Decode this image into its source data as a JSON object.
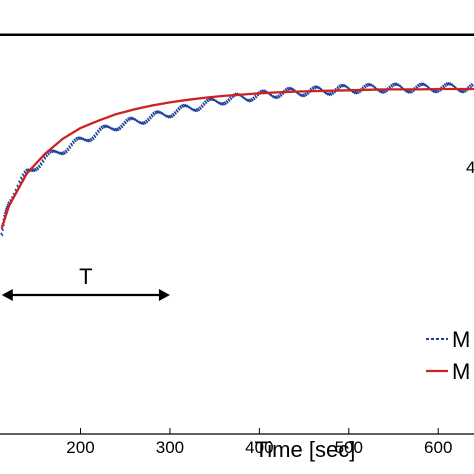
{
  "chart_data": {
    "type": "line",
    "xlabel": "Time [sec]",
    "x_ticks": [
      200,
      300,
      400,
      500,
      600
    ],
    "x_tick_labels": [
      "200",
      "300",
      "400",
      "500",
      "600"
    ],
    "xlim": [
      110,
      640
    ],
    "ylim": [
      0,
      1
    ],
    "grid": false,
    "legend_position": "bottom-right",
    "reference_line": {
      "y": 0.92,
      "color": "#000000"
    },
    "annotation": {
      "label": "T",
      "x_start": 112,
      "x_end": 300
    },
    "edge_label": "4",
    "series": [
      {
        "name": "M",
        "style": "dotted",
        "color": "#1f3f9a",
        "x": [
          112,
          120,
          140,
          160,
          180,
          200,
          220,
          240,
          260,
          280,
          300,
          320,
          340,
          360,
          380,
          400,
          420,
          440,
          460,
          480,
          500,
          520,
          540,
          560,
          580,
          600,
          620,
          640
        ],
        "y": [
          0.46,
          0.54,
          0.6,
          0.635,
          0.655,
          0.675,
          0.695,
          0.71,
          0.72,
          0.73,
          0.74,
          0.75,
          0.76,
          0.77,
          0.775,
          0.78,
          0.785,
          0.788,
          0.79,
          0.792,
          0.795,
          0.796,
          0.797,
          0.797,
          0.797,
          0.798,
          0.798,
          0.798
        ]
      },
      {
        "name": "M",
        "style": "solid",
        "color": "#cc2222",
        "x": [
          112,
          120,
          140,
          160,
          180,
          200,
          220,
          240,
          260,
          280,
          300,
          320,
          340,
          360,
          380,
          400,
          420,
          440,
          460,
          480,
          500,
          520,
          540,
          560,
          580,
          600,
          620,
          640
        ],
        "y": [
          0.475,
          0.525,
          0.6,
          0.645,
          0.68,
          0.705,
          0.722,
          0.737,
          0.748,
          0.757,
          0.764,
          0.77,
          0.775,
          0.779,
          0.782,
          0.785,
          0.787,
          0.789,
          0.79,
          0.791,
          0.792,
          0.793,
          0.794,
          0.794,
          0.794,
          0.795,
          0.795,
          0.795
        ]
      }
    ]
  }
}
